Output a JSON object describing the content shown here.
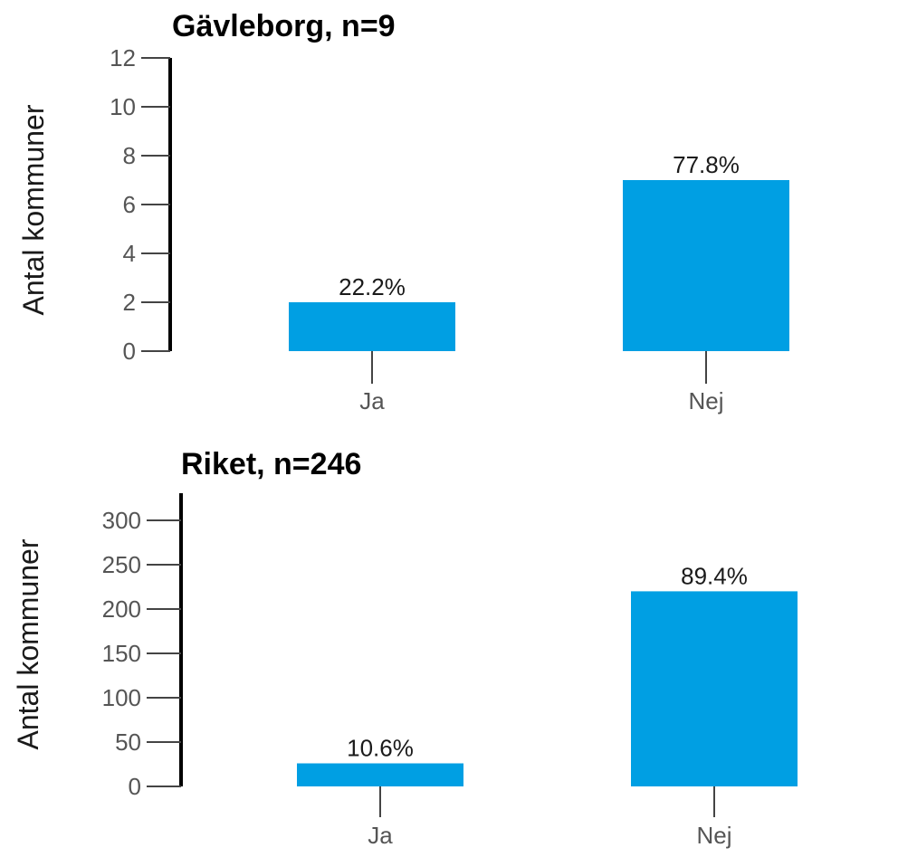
{
  "chart_data": [
    {
      "type": "bar",
      "title": "Gävleborg, n=9",
      "ylabel": "Antal kommuner",
      "xlabel": "",
      "categories": [
        "Ja",
        "Nej"
      ],
      "values": [
        2,
        7
      ],
      "data_labels": [
        "22.2%",
        "77.8%"
      ],
      "ylim": [
        0,
        12
      ],
      "yticks": [
        0,
        2,
        4,
        6,
        8,
        10,
        12
      ],
      "grid": false,
      "bar_color": "#009fe3"
    },
    {
      "type": "bar",
      "title": "Riket, n=246",
      "ylabel": "Antal kommuner",
      "xlabel": "",
      "categories": [
        "Ja",
        "Nej"
      ],
      "values": [
        26,
        220
      ],
      "data_labels": [
        "10.6%",
        "89.4%"
      ],
      "ylim": [
        0,
        300
      ],
      "yticks": [
        0,
        50,
        100,
        150,
        200,
        250,
        300
      ],
      "grid": false,
      "bar_color": "#009fe3"
    }
  ]
}
